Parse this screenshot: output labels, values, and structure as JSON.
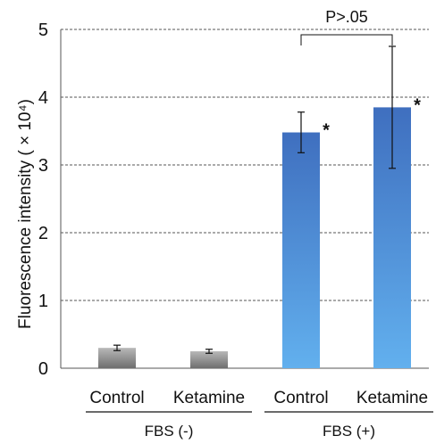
{
  "chart_data": {
    "type": "bar",
    "ylabel": "Fluorescence intensity ( × 10⁴)",
    "ylim": [
      0,
      5
    ],
    "yticks": [
      "0",
      "1",
      "2",
      "3",
      "4",
      "5"
    ],
    "grid": true,
    "groups": [
      {
        "label": "FBS (-)",
        "categories": [
          "Control",
          "Ketamine"
        ]
      },
      {
        "label": "FBS (+)",
        "categories": [
          "Control",
          "Ketamine"
        ]
      }
    ],
    "bars": [
      {
        "group": "FBS (-)",
        "category": "Control",
        "value": 0.3,
        "error": 0.04,
        "color": "#9e9e9e",
        "marker": ""
      },
      {
        "group": "FBS (-)",
        "category": "Ketamine",
        "value": 0.25,
        "error": 0.03,
        "color": "#9e9e9e",
        "marker": ""
      },
      {
        "group": "FBS (+)",
        "category": "Control",
        "value": 3.48,
        "error": 0.3,
        "color": "#4a7cc7",
        "marker": "*"
      },
      {
        "group": "FBS (+)",
        "category": "Ketamine",
        "value": 3.85,
        "error": 0.9,
        "color": "#4a7cc7",
        "marker": "*"
      }
    ],
    "annotations": [
      {
        "text": "P>.05",
        "between": [
          "FBS (+) Control",
          "FBS (+) Ketamine"
        ]
      }
    ]
  }
}
